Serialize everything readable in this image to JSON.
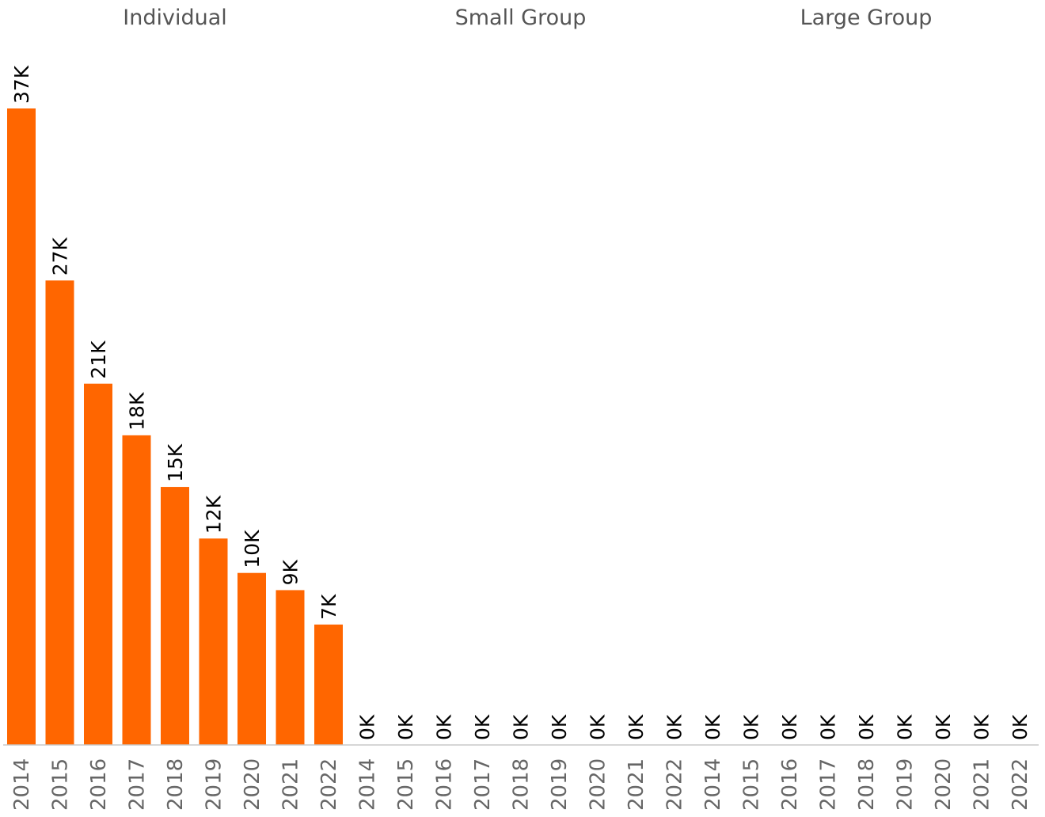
{
  "chart_data": {
    "type": "bar",
    "panels": [
      {
        "name": "Individual",
        "categories": [
          "2014",
          "2015",
          "2016",
          "2017",
          "2018",
          "2019",
          "2020",
          "2021",
          "2022"
        ],
        "values": [
          37,
          27,
          21,
          18,
          15,
          12,
          10,
          9,
          7
        ],
        "labels": [
          "37K",
          "27K",
          "21K",
          "18K",
          "15K",
          "12K",
          "10K",
          "9K",
          "7K"
        ]
      },
      {
        "name": "Small Group",
        "categories": [
          "2014",
          "2015",
          "2016",
          "2017",
          "2018",
          "2019",
          "2020",
          "2021",
          "2022"
        ],
        "values": [
          0,
          0,
          0,
          0,
          0,
          0,
          0,
          0,
          0
        ],
        "labels": [
          "0K",
          "0K",
          "0K",
          "0K",
          "0K",
          "0K",
          "0K",
          "0K",
          "0K"
        ]
      },
      {
        "name": "Large Group",
        "categories": [
          "2014",
          "2015",
          "2016",
          "2017",
          "2018",
          "2019",
          "2020",
          "2021",
          "2022"
        ],
        "values": [
          0,
          0,
          0,
          0,
          0,
          0,
          0,
          0,
          0
        ],
        "labels": [
          "0K",
          "0K",
          "0K",
          "0K",
          "0K",
          "0K",
          "0K",
          "0K",
          "0K"
        ]
      }
    ],
    "value_unit": "K",
    "ylim": [
      0,
      37
    ],
    "bar_color": "#ff6600",
    "axis_color": "#c8c8c8",
    "grid": false,
    "legend": "none"
  }
}
